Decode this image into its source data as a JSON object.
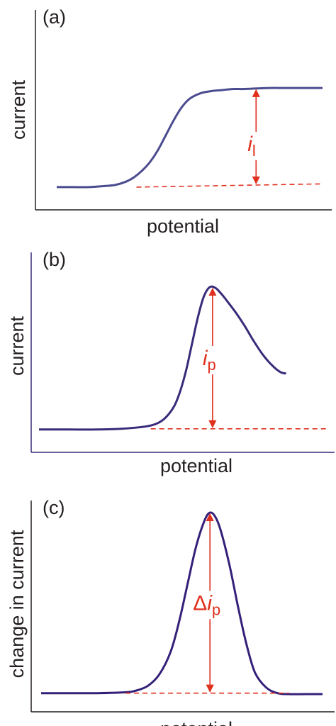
{
  "colors": {
    "axis": "#231f20",
    "curve_a": "#4a4c8f",
    "curve_b": "#3a2a7a",
    "curve_c": "#352079",
    "annotation": "#e0301e"
  },
  "chart_data": [
    {
      "type": "line",
      "panel_label": "(a)",
      "xlabel": "potential",
      "ylabel": "current",
      "annotation": {
        "symbol": "i",
        "subscript": "l",
        "prefix": ""
      },
      "x": [
        0.0,
        0.06,
        0.12,
        0.18,
        0.22,
        0.26,
        0.29,
        0.32,
        0.35,
        0.38,
        0.41,
        0.44,
        0.47,
        0.5,
        0.54,
        0.58,
        0.62,
        0.66,
        0.7,
        0.75,
        0.8,
        0.86,
        0.92,
        1.0
      ],
      "series": [
        {
          "values": [
            0.04,
            0.04,
            0.04,
            0.05,
            0.06,
            0.09,
            0.13,
            0.19,
            0.27,
            0.38,
            0.52,
            0.66,
            0.78,
            0.86,
            0.91,
            0.93,
            0.94,
            0.95,
            0.95,
            0.955,
            0.96,
            0.96,
            0.96,
            0.96
          ]
        }
      ],
      "baseline": {
        "x": [
          0.3,
          1.0
        ],
        "y": [
          0.04,
          0.07
        ]
      },
      "marker": {
        "x": 0.75,
        "y_low": 0.06,
        "y_high": 0.955
      },
      "ylim": [
        0,
        1
      ],
      "xlim": [
        0,
        1
      ]
    },
    {
      "type": "line",
      "panel_label": "(b)",
      "xlabel": "potential",
      "ylabel": "current",
      "annotation": {
        "symbol": "i",
        "subscript": "p",
        "prefix": ""
      },
      "x": [
        0.0,
        0.1,
        0.2,
        0.28,
        0.36,
        0.4,
        0.43,
        0.46,
        0.48,
        0.5,
        0.52,
        0.54,
        0.56,
        0.58,
        0.6,
        0.62,
        0.64,
        0.67,
        0.7,
        0.73,
        0.76,
        0.79,
        0.82,
        0.84
      ],
      "series": [
        {
          "values": [
            0.02,
            0.02,
            0.02,
            0.025,
            0.04,
            0.06,
            0.1,
            0.18,
            0.28,
            0.42,
            0.6,
            0.78,
            0.92,
            0.985,
            0.98,
            0.94,
            0.89,
            0.81,
            0.72,
            0.62,
            0.53,
            0.46,
            0.41,
            0.4
          ]
        }
      ],
      "baseline": {
        "x": [
          0.38,
          0.98
        ],
        "y": [
          0.025,
          0.025
        ]
      },
      "marker": {
        "x": 0.59,
        "y_low": 0.025,
        "y_high": 0.985
      },
      "ylim": [
        0,
        1
      ],
      "xlim": [
        0,
        1
      ]
    },
    {
      "type": "line",
      "panel_label": "(c)",
      "xlabel": "potential",
      "ylabel": "change in current",
      "annotation": {
        "symbol": "i",
        "subscript": "p",
        "prefix": "Δ"
      },
      "x": [
        0.0,
        0.1,
        0.2,
        0.3,
        0.34,
        0.38,
        0.42,
        0.46,
        0.49,
        0.52,
        0.55,
        0.58,
        0.6,
        0.62,
        0.64,
        0.67,
        0.7,
        0.73,
        0.76,
        0.8,
        0.84,
        0.88,
        0.94,
        1.0
      ],
      "series": [
        {
          "values": [
            0.02,
            0.02,
            0.02,
            0.025,
            0.035,
            0.06,
            0.12,
            0.24,
            0.4,
            0.6,
            0.8,
            0.94,
            0.985,
            0.96,
            0.88,
            0.7,
            0.48,
            0.28,
            0.13,
            0.05,
            0.02,
            0.015,
            0.015,
            0.015
          ]
        }
      ],
      "baseline": {
        "x": [
          0.3,
          0.88
        ],
        "y": [
          0.02,
          0.02
        ]
      },
      "marker": {
        "x": 0.6,
        "y_low": 0.02,
        "y_high": 0.985
      },
      "ylim": [
        0,
        1
      ],
      "xlim": [
        0,
        1
      ]
    }
  ]
}
